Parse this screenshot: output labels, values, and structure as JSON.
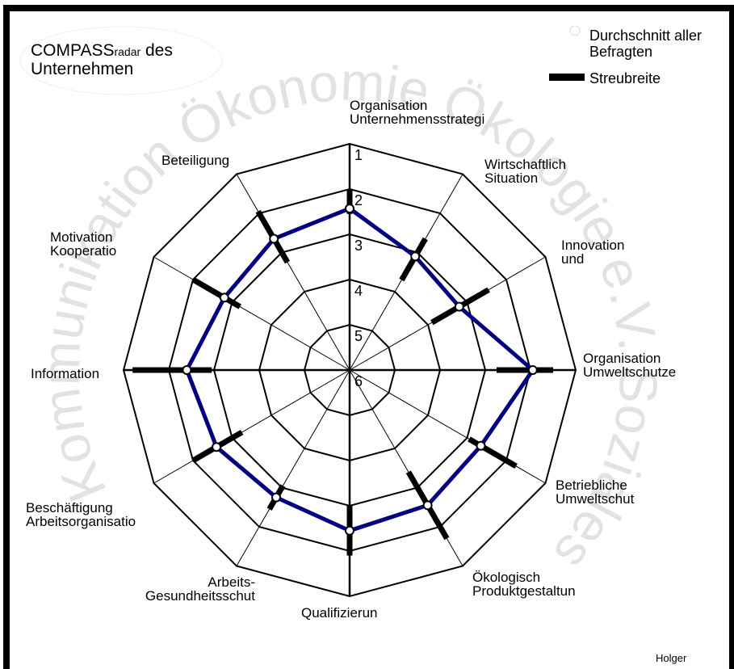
{
  "chart_data": {
    "type": "radar",
    "title": "COMPASS",
    "title_subscript": "radar",
    "title_rest": "des\nUnternehmen",
    "watermark": "Kommunikation Ökonomie Ökologie e.V. Soziales",
    "footer": "Holger",
    "categories": [
      "Organisation\nUnternehmensstrategi",
      "Wirtschaftlich\nSituation",
      "Innovation\nund",
      "Organisation\nUmweltschutze",
      "Betriebliche\nUmweltschut",
      "Ökologisch\nProduktgestaltun",
      "Qualifizierun",
      "Arbeits-\nGesundheitsschut",
      "Beschäftigung\nArbeitsorganisatio",
      "Information",
      "Motivation\nKooperatio",
      "Beteiligung"
    ],
    "ylim": [
      6,
      1
    ],
    "yticks": [
      1,
      2,
      3,
      4,
      5,
      6
    ],
    "series": [
      {
        "name": "Durchschnitt aller\nBefragten",
        "color": "#000080",
        "values": [
          2.43,
          3.1,
          3.2,
          1.95,
          2.65,
          2.55,
          2.45,
          2.75,
          2.6,
          2.4,
          2.8,
          2.65
        ]
      },
      {
        "name": "Streubreite",
        "color": "#000000",
        "low": [
          2.0,
          2.65,
          2.45,
          1.5,
          1.75,
          1.7,
          1.9,
          2.45,
          2.0,
          1.2,
          2.0,
          1.95
        ],
        "high": [
          2.55,
          3.7,
          3.9,
          2.75,
          2.95,
          3.4,
          3.0,
          3.05,
          3.25,
          2.95,
          3.2,
          3.25
        ]
      }
    ]
  }
}
